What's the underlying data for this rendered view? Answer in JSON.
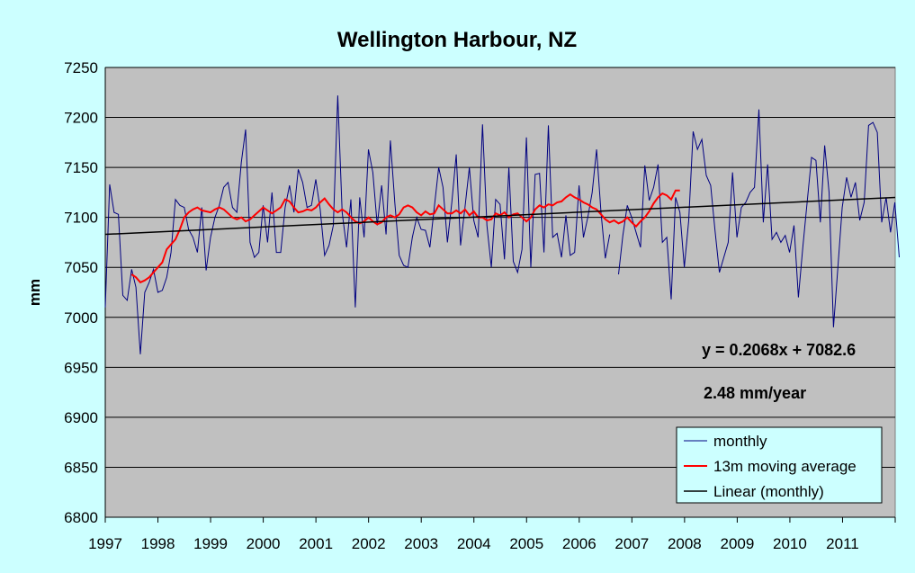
{
  "chart_data": {
    "type": "line",
    "title": "Wellington Harbour, NZ",
    "xlabel": "",
    "ylabel": "mm",
    "xlim": [
      1997,
      2012
    ],
    "ylim": [
      6800,
      7250
    ],
    "y_ticks": [
      "7250",
      "7200",
      "7150",
      "7100",
      "7050",
      "7000",
      "6950",
      "6900",
      "6850",
      "6800"
    ],
    "x_ticks": [
      "1997",
      "1998",
      "1999",
      "2000",
      "2001",
      "2002",
      "2003",
      "2004",
      "2005",
      "2006",
      "2007",
      "2008",
      "2009",
      "2010",
      "2011"
    ],
    "grid": "horizontal",
    "legend_position": "bottom-right",
    "colors": {
      "background": "#ccffff",
      "plot_area": "#c0c0c0",
      "monthly": "#000080",
      "moving_average": "#ff0000",
      "linear": "#000000"
    },
    "annotations": [
      "y = 0.2068x + 7082.6",
      "2.48 mm/year"
    ],
    "series": [
      {
        "name": "monthly",
        "start": 1997.0,
        "step": 0.0833,
        "values": [
          7010,
          7133,
          7105,
          7103,
          7022,
          7017,
          7048,
          7030,
          6963,
          7025,
          7035,
          7048,
          7025,
          7027,
          7040,
          7065,
          7118,
          7112,
          7110,
          7088,
          7080,
          7065,
          7110,
          7047,
          7080,
          7100,
          7112,
          7130,
          7135,
          7110,
          7105,
          7155,
          7188,
          7075,
          7060,
          7065,
          7112,
          7075,
          7125,
          7065,
          7065,
          7110,
          7132,
          7105,
          7148,
          7135,
          7110,
          7112,
          7138,
          7108,
          7062,
          7072,
          7092,
          7222,
          7105,
          7070,
          7118,
          7010,
          7120,
          7080,
          7168,
          7145,
          7092,
          7132,
          7083,
          7177,
          7115,
          7062,
          7052,
          7050,
          7080,
          7100,
          7088,
          7087,
          7070,
          7110,
          7150,
          7130,
          7075,
          7115,
          7163,
          7072,
          7110,
          7150,
          7097,
          7080,
          7193,
          7092,
          7050,
          7118,
          7113,
          7058,
          7150,
          7056,
          7045,
          7068,
          7180,
          7050,
          7143,
          7144,
          7065,
          7192,
          7080,
          7084,
          7060,
          7102,
          7062,
          7065,
          7132,
          7080,
          7100,
          7125,
          7168,
          7105,
          7059,
          7083,
          null,
          7043,
          7082,
          7112,
          7100,
          7085,
          7070,
          7152,
          7117,
          7130,
          7153,
          7075,
          7080,
          7018,
          7120,
          7105,
          7050,
          7097,
          7186,
          7168,
          7178,
          7142,
          7132,
          7087,
          7045,
          7060,
          7075,
          7145,
          7080,
          7110,
          7115,
          7125,
          7130,
          7208,
          7095,
          7153,
          7078,
          7085,
          7075,
          7082,
          7065,
          7092,
          7020,
          7070,
          7115,
          7160,
          7157,
          7095,
          7172,
          7125,
          6990,
          7050,
          7110,
          7140,
          7120,
          7135,
          7097,
          7115,
          7192,
          7195,
          7185,
          7095,
          7120,
          7085,
          7115,
          7060
        ]
      },
      {
        "name": "13m moving average",
        "start": 1997.5,
        "step": 0.0833,
        "values": [
          7043,
          7040,
          7035,
          7037,
          7040,
          7045,
          7050,
          7055,
          7068,
          7073,
          7078,
          7088,
          7100,
          7105,
          7108,
          7110,
          7107,
          7106,
          7105,
          7108,
          7110,
          7108,
          7104,
          7100,
          7098,
          7100,
          7096,
          7098,
          7102,
          7106,
          7110,
          7107,
          7104,
          7107,
          7110,
          7118,
          7116,
          7110,
          7105,
          7106,
          7108,
          7107,
          7110,
          7115,
          7119,
          7113,
          7108,
          7105,
          7108,
          7105,
          7100,
          7096,
          7094,
          7096,
          7100,
          7096,
          7093,
          7095,
          7100,
          7102,
          7100,
          7103,
          7110,
          7112,
          7110,
          7105,
          7102,
          7106,
          7103,
          7104,
          7112,
          7108,
          7104,
          7104,
          7107,
          7104,
          7108,
          7102,
          7106,
          7100,
          7100,
          7097,
          7098,
          7104,
          7102,
          7105,
          7100,
          7103,
          7104,
          7100,
          7096,
          7100,
          7108,
          7112,
          7110,
          7113,
          7112,
          7115,
          7116,
          7120,
          7123,
          7120,
          7118,
          7115,
          7113,
          7110,
          7108,
          7103,
          7098,
          7095,
          7097,
          7094,
          7096,
          7100,
          7095,
          7091,
          7096,
          7100,
          7106,
          7114,
          7120,
          7124,
          7122,
          7118,
          7127,
          7127
        ]
      },
      {
        "name": "Linear (monthly)",
        "x": [
          1997,
          2012
        ],
        "values": [
          7083,
          7120
        ]
      }
    ]
  }
}
